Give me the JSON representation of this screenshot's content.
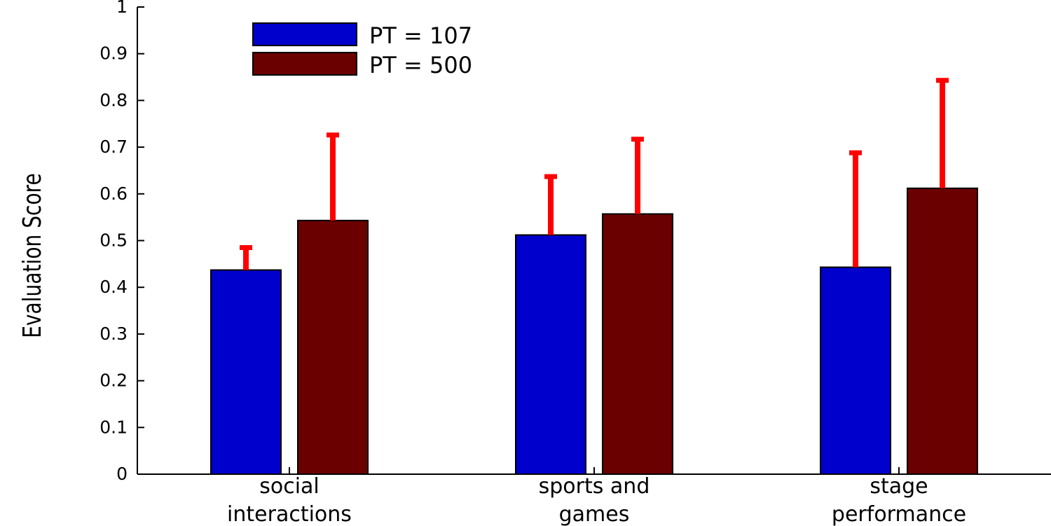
{
  "chart_data": {
    "type": "bar",
    "categories": [
      [
        "social",
        "interactions"
      ],
      [
        "sports and",
        "games"
      ],
      [
        "stage",
        "performance"
      ]
    ],
    "series": [
      {
        "name": "PT = 107",
        "color": "#0000cc",
        "values": [
          0.437,
          0.512,
          0.443
        ],
        "error_top": [
          0.485,
          0.637,
          0.688
        ]
      },
      {
        "name": "PT = 500",
        "color": "#6b0000",
        "values": [
          0.543,
          0.557,
          0.612
        ],
        "error_top": [
          0.726,
          0.717,
          0.843
        ]
      }
    ],
    "error_bar_color": "#ff0000",
    "title": "",
    "xlabel": "",
    "ylabel": "Evaluation Score",
    "ylim": [
      0,
      1
    ],
    "yticks": [
      "0",
      "0.1",
      "0.2",
      "0.3",
      "0.4",
      "0.5",
      "0.6",
      "0.7",
      "0.8",
      "0.9",
      "1"
    ],
    "grid": false,
    "legend_position": "top-left"
  }
}
